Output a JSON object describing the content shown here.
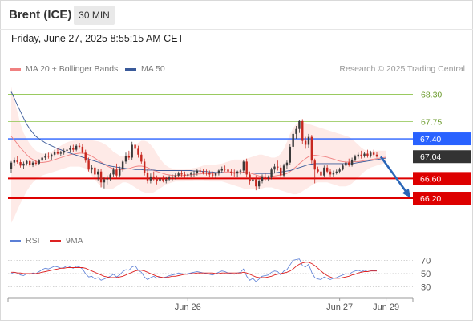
{
  "header": {
    "instrument": "Brent (ICE)",
    "timeframe": "30 MIN",
    "datetime": "Friday, June 27, 2025 8:55:15 AM CET"
  },
  "legend": {
    "ma20_label": "MA 20 + Bollinger Bands",
    "ma20_color": "#f08080",
    "ma50_label": "MA 50",
    "ma50_color": "#3a5a9a",
    "copyright": "Research © 2025 Trading Central"
  },
  "rsi_legend": {
    "rsi_label": "RSI",
    "rsi_color": "#5b7fd6",
    "ma_label": "9MA",
    "ma_color": "#dd2222"
  },
  "chart_data": {
    "type": "candlestick",
    "price_axis": {
      "ylim": [
        65.6,
        68.65
      ]
    },
    "levels": [
      {
        "label": "68.30",
        "value": 68.3,
        "color": "#8bc34a",
        "style": "thin"
      },
      {
        "label": "67.75",
        "value": 67.75,
        "color": "#8bc34a",
        "style": "thin"
      },
      {
        "label": "67.40",
        "value": 67.4,
        "color": "#2962ff",
        "style": "medium"
      },
      {
        "label": "67.04",
        "value": 67.04,
        "color": "#333333",
        "style": "last"
      },
      {
        "label": "66.60",
        "value": 66.6,
        "color": "#dd0000",
        "style": "thick"
      },
      {
        "label": "66.20",
        "value": 66.2,
        "color": "#dd0000",
        "style": "thick"
      }
    ],
    "forecast_arrow": {
      "from": 67.04,
      "to": 66.2
    },
    "x_labels": [
      "Jun 26",
      "Jun 27",
      "Jun 29"
    ],
    "x_label_index": [
      57,
      106,
      121
    ],
    "ohlc": [
      [
        66.8,
        66.95,
        66.72,
        66.92
      ],
      [
        66.92,
        67.02,
        66.85,
        66.97
      ],
      [
        66.97,
        67.05,
        66.9,
        66.93
      ],
      [
        66.93,
        66.99,
        66.82,
        66.86
      ],
      [
        66.86,
        66.94,
        66.8,
        66.9
      ],
      [
        66.9,
        66.98,
        66.86,
        66.95
      ],
      [
        66.95,
        66.98,
        66.84,
        66.88
      ],
      [
        66.88,
        66.95,
        66.83,
        66.92
      ],
      [
        66.92,
        66.98,
        66.86,
        66.9
      ],
      [
        66.9,
        66.99,
        66.88,
        66.96
      ],
      [
        66.96,
        67.05,
        66.92,
        67.02
      ],
      [
        67.02,
        67.1,
        66.98,
        67.06
      ],
      [
        67.06,
        67.12,
        67.0,
        67.04
      ],
      [
        67.04,
        67.1,
        66.98,
        67.08
      ],
      [
        67.08,
        67.18,
        67.04,
        67.14
      ],
      [
        67.14,
        67.2,
        67.08,
        67.1
      ],
      [
        67.1,
        67.16,
        67.05,
        67.12
      ],
      [
        67.12,
        67.2,
        67.08,
        67.16
      ],
      [
        67.16,
        67.22,
        67.1,
        67.18
      ],
      [
        67.18,
        67.26,
        67.12,
        67.22
      ],
      [
        67.22,
        67.28,
        67.14,
        67.18
      ],
      [
        67.18,
        67.3,
        67.15,
        67.26
      ],
      [
        67.26,
        67.32,
        67.2,
        67.24
      ],
      [
        67.24,
        67.3,
        67.1,
        67.12
      ],
      [
        67.12,
        67.18,
        66.92,
        66.96
      ],
      [
        66.96,
        67.02,
        66.74,
        66.78
      ],
      [
        66.78,
        66.88,
        66.7,
        66.82
      ],
      [
        66.82,
        66.86,
        66.62,
        66.68
      ],
      [
        66.68,
        66.8,
        66.56,
        66.74
      ],
      [
        66.74,
        66.8,
        66.42,
        66.52
      ],
      [
        66.52,
        66.62,
        66.4,
        66.58
      ],
      [
        66.58,
        66.66,
        66.48,
        66.6
      ],
      [
        66.6,
        66.72,
        66.55,
        66.68
      ],
      [
        66.68,
        66.82,
        66.64,
        66.78
      ],
      [
        66.78,
        66.9,
        66.6,
        66.66
      ],
      [
        66.66,
        66.84,
        66.62,
        66.8
      ],
      [
        66.8,
        66.98,
        66.74,
        66.94
      ],
      [
        66.94,
        67.12,
        66.9,
        67.06
      ],
      [
        67.06,
        67.16,
        66.98,
        67.02
      ],
      [
        67.02,
        67.34,
        66.98,
        67.28
      ],
      [
        67.28,
        67.44,
        67.16,
        67.2
      ],
      [
        67.2,
        67.26,
        67.02,
        67.08
      ],
      [
        67.08,
        67.14,
        66.9,
        66.94
      ],
      [
        66.94,
        67.0,
        66.66,
        66.72
      ],
      [
        66.72,
        66.8,
        66.5,
        66.56
      ],
      [
        66.56,
        66.7,
        66.5,
        66.64
      ],
      [
        66.64,
        66.74,
        66.56,
        66.6
      ],
      [
        66.6,
        66.66,
        66.48,
        66.54
      ],
      [
        66.54,
        66.64,
        66.5,
        66.6
      ],
      [
        66.6,
        66.66,
        66.52,
        66.56
      ],
      [
        66.56,
        66.64,
        66.5,
        66.58
      ],
      [
        66.58,
        66.66,
        66.54,
        66.62
      ],
      [
        66.62,
        66.68,
        66.56,
        66.64
      ],
      [
        66.64,
        66.7,
        66.58,
        66.66
      ],
      [
        66.66,
        66.74,
        66.62,
        66.7
      ],
      [
        66.7,
        66.76,
        66.64,
        66.68
      ],
      [
        66.68,
        66.74,
        66.6,
        66.66
      ],
      [
        66.66,
        66.72,
        66.6,
        66.68
      ],
      [
        66.68,
        66.74,
        66.62,
        66.7
      ],
      [
        66.7,
        66.76,
        66.64,
        66.72
      ],
      [
        66.72,
        66.8,
        66.66,
        66.76
      ],
      [
        66.76,
        66.82,
        66.7,
        66.74
      ],
      [
        66.74,
        66.8,
        66.68,
        66.72
      ],
      [
        66.72,
        66.78,
        66.66,
        66.7
      ],
      [
        66.7,
        66.76,
        66.62,
        66.68
      ],
      [
        66.68,
        66.74,
        66.6,
        66.66
      ],
      [
        66.66,
        66.72,
        66.6,
        66.7
      ],
      [
        66.7,
        66.78,
        66.66,
        66.76
      ],
      [
        66.76,
        66.84,
        66.72,
        66.8
      ],
      [
        66.8,
        66.86,
        66.74,
        66.78
      ],
      [
        66.78,
        66.84,
        66.7,
        66.74
      ],
      [
        66.74,
        66.8,
        66.66,
        66.72
      ],
      [
        66.72,
        66.78,
        66.64,
        66.7
      ],
      [
        66.7,
        66.76,
        66.62,
        66.74
      ],
      [
        66.74,
        66.8,
        66.68,
        66.76
      ],
      [
        66.76,
        66.98,
        66.72,
        66.94
      ],
      [
        66.94,
        67.0,
        66.62,
        66.68
      ],
      [
        66.68,
        66.74,
        66.48,
        66.54
      ],
      [
        66.54,
        66.64,
        66.44,
        66.58
      ],
      [
        66.58,
        66.66,
        66.36,
        66.44
      ],
      [
        66.44,
        66.58,
        66.38,
        66.54
      ],
      [
        66.54,
        66.68,
        66.5,
        66.64
      ],
      [
        66.64,
        66.7,
        66.56,
        66.6
      ],
      [
        66.6,
        66.66,
        66.54,
        66.62
      ],
      [
        66.62,
        66.82,
        66.58,
        66.78
      ],
      [
        66.78,
        66.9,
        66.7,
        66.84
      ],
      [
        66.84,
        66.96,
        66.76,
        66.82
      ],
      [
        66.82,
        66.88,
        66.6,
        66.66
      ],
      [
        66.66,
        66.9,
        66.62,
        66.86
      ],
      [
        66.86,
        66.96,
        66.8,
        66.92
      ],
      [
        66.92,
        67.3,
        66.88,
        67.24
      ],
      [
        67.24,
        67.56,
        67.18,
        67.5
      ],
      [
        67.5,
        67.66,
        67.4,
        67.6
      ],
      [
        67.6,
        67.78,
        67.52,
        67.76
      ],
      [
        67.76,
        67.8,
        67.3,
        67.36
      ],
      [
        67.36,
        67.44,
        67.2,
        67.28
      ],
      [
        67.28,
        67.5,
        67.22,
        67.44
      ],
      [
        67.44,
        67.48,
        66.9,
        66.96
      ],
      [
        66.96,
        67.0,
        66.5,
        66.78
      ],
      [
        66.78,
        66.84,
        66.7,
        66.74
      ],
      [
        66.74,
        66.8,
        66.62,
        66.66
      ],
      [
        66.66,
        66.86,
        66.62,
        66.82
      ],
      [
        66.82,
        66.88,
        66.7,
        66.74
      ],
      [
        66.74,
        66.8,
        66.64,
        66.68
      ],
      [
        66.68,
        66.76,
        66.64,
        66.72
      ],
      [
        66.72,
        66.78,
        66.68,
        66.74
      ],
      [
        66.74,
        66.82,
        66.7,
        66.78
      ],
      [
        66.78,
        66.9,
        66.76,
        66.86
      ],
      [
        66.86,
        66.96,
        66.82,
        66.92
      ],
      [
        66.92,
        67.0,
        66.84,
        66.88
      ],
      [
        66.88,
        67.02,
        66.84,
        66.98
      ],
      [
        66.98,
        67.08,
        66.94,
        67.04
      ],
      [
        67.04,
        67.12,
        67.0,
        67.08
      ],
      [
        67.08,
        67.16,
        67.0,
        67.06
      ],
      [
        67.06,
        67.14,
        67.02,
        67.1
      ],
      [
        67.1,
        67.18,
        67.02,
        67.06
      ],
      [
        67.06,
        67.16,
        67.02,
        67.12
      ],
      [
        67.12,
        67.18,
        67.04,
        67.08
      ],
      [
        67.08,
        67.14,
        67.02,
        67.04
      ]
    ],
    "ma20": [
      67.45,
      67.38,
      67.3,
      67.22,
      67.15,
      67.08,
      67.02,
      66.98,
      66.94,
      66.92,
      66.92,
      66.93,
      66.94,
      66.96,
      66.98,
      67.0,
      67.02,
      67.04,
      67.06,
      67.08,
      67.09,
      67.1,
      67.11,
      67.11,
      67.1,
      67.08,
      67.05,
      67.01,
      66.97,
      66.93,
      66.89,
      66.85,
      66.82,
      66.8,
      66.79,
      66.78,
      66.78,
      66.79,
      66.8,
      66.82,
      66.84,
      66.85,
      66.85,
      66.84,
      66.82,
      66.79,
      66.76,
      66.74,
      66.72,
      66.7,
      66.68,
      66.67,
      66.66,
      66.66,
      66.66,
      66.66,
      66.66,
      66.67,
      66.67,
      66.68,
      66.69,
      66.69,
      66.7,
      66.7,
      66.7,
      66.7,
      66.7,
      66.71,
      66.72,
      66.73,
      66.73,
      66.73,
      66.72,
      66.72,
      66.72,
      66.73,
      66.72,
      66.71,
      66.69,
      66.67,
      66.65,
      66.64,
      66.63,
      66.63,
      66.64,
      66.65,
      66.66,
      66.67,
      66.68,
      66.7,
      66.74,
      66.79,
      66.84,
      66.9,
      66.95,
      67.0,
      67.04,
      67.06,
      67.07,
      67.06,
      67.05,
      67.04,
      67.03,
      67.01,
      66.99,
      66.97,
      66.95,
      66.94,
      66.93,
      66.93,
      66.93,
      66.94,
      66.94,
      66.95,
      66.96,
      66.97,
      66.98,
      66.99,
      67.0,
      67.01,
      67.02,
      67.03
    ],
    "bb_upper": [
      68.45,
      68.2,
      67.95,
      67.7,
      67.52,
      67.4,
      67.3,
      67.22,
      67.16,
      67.12,
      67.1,
      67.1,
      67.12,
      67.14,
      67.18,
      67.22,
      67.26,
      67.3,
      67.33,
      67.35,
      67.36,
      67.37,
      67.38,
      67.38,
      67.38,
      67.38,
      67.37,
      67.36,
      67.35,
      67.33,
      67.3,
      67.26,
      67.2,
      67.14,
      67.1,
      67.06,
      67.04,
      67.06,
      67.1,
      67.18,
      67.26,
      67.32,
      67.36,
      67.36,
      67.34,
      67.28,
      67.2,
      67.1,
      67.0,
      66.92,
      66.86,
      66.82,
      66.8,
      66.78,
      66.78,
      66.78,
      66.78,
      66.79,
      66.8,
      66.81,
      66.82,
      66.84,
      66.86,
      66.87,
      66.88,
      66.88,
      66.88,
      66.89,
      66.9,
      66.92,
      66.94,
      66.96,
      66.98,
      66.98,
      66.98,
      66.98,
      67.0,
      67.02,
      67.04,
      67.06,
      67.08,
      67.08,
      67.06,
      67.04,
      67.02,
      67.02,
      67.04,
      67.1,
      67.2,
      67.34,
      67.5,
      67.62,
      67.7,
      67.74,
      67.74,
      67.72,
      67.7,
      67.68,
      67.66,
      67.64,
      67.62,
      67.6,
      67.58,
      67.56,
      67.54,
      67.52,
      67.5,
      67.48,
      67.46,
      67.44,
      67.4,
      67.34,
      67.28,
      67.22,
      67.18,
      67.16,
      67.15,
      67.15,
      67.16,
      67.16,
      67.16,
      67.16
    ],
    "bb_lower": [
      65.7,
      65.82,
      65.96,
      66.1,
      66.22,
      66.34,
      66.44,
      66.52,
      66.58,
      66.62,
      66.66,
      66.68,
      66.7,
      66.72,
      66.74,
      66.76,
      66.78,
      66.8,
      66.82,
      66.84,
      66.84,
      66.84,
      66.84,
      66.82,
      66.8,
      66.74,
      66.66,
      66.58,
      66.5,
      66.44,
      66.4,
      66.38,
      66.38,
      66.4,
      66.44,
      66.48,
      66.52,
      66.52,
      66.5,
      66.46,
      66.42,
      66.38,
      66.34,
      66.32,
      66.3,
      66.3,
      66.32,
      66.36,
      66.4,
      66.44,
      66.48,
      66.5,
      66.52,
      66.54,
      66.54,
      66.54,
      66.54,
      66.55,
      66.55,
      66.56,
      66.56,
      66.56,
      66.56,
      66.55,
      66.54,
      66.54,
      66.54,
      66.54,
      66.54,
      66.52,
      66.5,
      66.48,
      66.46,
      66.44,
      66.42,
      66.4,
      66.38,
      66.38,
      66.38,
      66.38,
      66.38,
      66.4,
      66.42,
      66.42,
      66.42,
      66.4,
      66.38,
      66.36,
      66.34,
      66.32,
      66.3,
      66.28,
      66.28,
      66.3,
      66.34,
      66.38,
      66.42,
      66.46,
      66.5,
      66.52,
      66.52,
      66.52,
      66.52,
      66.5,
      66.48,
      66.46,
      66.44,
      66.44,
      66.44,
      66.46,
      66.5,
      66.56,
      66.62,
      66.68,
      66.74,
      66.78,
      66.82,
      66.84,
      66.86,
      66.88,
      66.9,
      66.92
    ],
    "ma50": [
      68.35,
      68.22,
      68.08,
      67.95,
      67.82,
      67.7,
      67.6,
      67.52,
      67.45,
      67.4,
      67.36,
      67.32,
      67.29,
      67.26,
      67.23,
      67.2,
      67.18,
      67.15,
      67.13,
      67.11,
      67.09,
      67.07,
      67.05,
      67.03,
      67.01,
      66.99,
      66.97,
      66.95,
      66.93,
      66.91,
      66.89,
      66.87,
      66.85,
      66.84,
      66.83,
      66.82,
      66.81,
      66.8,
      66.79,
      66.79,
      66.78,
      66.78,
      66.78,
      66.77,
      66.77,
      66.77,
      66.77,
      66.76,
      66.76,
      66.76,
      66.76,
      66.76,
      66.76,
      66.76,
      66.76,
      66.76,
      66.76,
      66.76,
      66.76,
      66.75,
      66.75,
      66.75,
      66.74,
      66.74,
      66.73,
      66.73,
      66.72,
      66.72,
      66.72,
      66.71,
      66.71,
      66.71,
      66.71,
      66.71,
      66.71,
      66.71,
      66.71,
      66.71,
      66.71,
      66.7,
      66.7,
      66.7,
      66.7,
      66.7,
      66.7,
      66.71,
      66.72,
      66.73,
      66.74,
      66.75,
      66.76,
      66.78,
      66.8,
      66.82,
      66.84,
      66.86,
      66.88,
      66.89,
      66.9,
      66.9,
      66.9,
      66.9,
      66.9,
      66.9,
      66.9,
      66.9,
      66.9,
      66.9,
      66.9,
      66.9,
      66.9,
      66.91,
      66.92,
      66.93,
      66.94,
      66.95,
      66.96,
      66.97,
      66.98,
      66.99,
      67.0,
      67.01
    ],
    "rsi_axis": {
      "ylim": [
        20,
        80
      ],
      "ticks": [
        "70",
        "50",
        "30"
      ],
      "tick_values": [
        70,
        50,
        30
      ]
    },
    "rsi": [
      50,
      52,
      51,
      48,
      47,
      50,
      49,
      51,
      50,
      53,
      56,
      58,
      57,
      59,
      61,
      60,
      58,
      59,
      62,
      60,
      58,
      61,
      60,
      57,
      50,
      45,
      46,
      42,
      44,
      40,
      42,
      44,
      46,
      49,
      45,
      48,
      53,
      56,
      55,
      60,
      62,
      55,
      52,
      45,
      41,
      44,
      46,
      43,
      45,
      44,
      45,
      47,
      48,
      49,
      51,
      50,
      49,
      50,
      51,
      52,
      53,
      52,
      51,
      50,
      49,
      48,
      50,
      52,
      54,
      53,
      51,
      50,
      49,
      51,
      52,
      57,
      46,
      40,
      43,
      38,
      42,
      46,
      47,
      48,
      52,
      54,
      53,
      48,
      54,
      56,
      63,
      70,
      71,
      72,
      62,
      60,
      64,
      52,
      44,
      42,
      41,
      45,
      43,
      41,
      43,
      44,
      46,
      48,
      50,
      49,
      52,
      54,
      55,
      53,
      55,
      53,
      54,
      55,
      54
    ],
    "rsi_ma": [
      52,
      52,
      51,
      51,
      50,
      50,
      50,
      50,
      50,
      51,
      52,
      53,
      54,
      55,
      56,
      57,
      58,
      58,
      59,
      59,
      59,
      59,
      59,
      59,
      58,
      56,
      54,
      52,
      50,
      48,
      46,
      45,
      44,
      44,
      44,
      45,
      46,
      48,
      50,
      52,
      54,
      55,
      55,
      54,
      52,
      50,
      48,
      46,
      45,
      44,
      44,
      45,
      46,
      46,
      47,
      48,
      49,
      49,
      50,
      50,
      51,
      51,
      51,
      51,
      51,
      51,
      50,
      50,
      51,
      51,
      51,
      51,
      51,
      51,
      51,
      52,
      51,
      49,
      47,
      45,
      44,
      44,
      44,
      45,
      46,
      48,
      49,
      50,
      51,
      52,
      54,
      57,
      61,
      64,
      66,
      67,
      67,
      65,
      62,
      58,
      54,
      50,
      47,
      45,
      43,
      43,
      43,
      44,
      45,
      46,
      48,
      49,
      51,
      52,
      53,
      53,
      54,
      54,
      54
    ]
  }
}
